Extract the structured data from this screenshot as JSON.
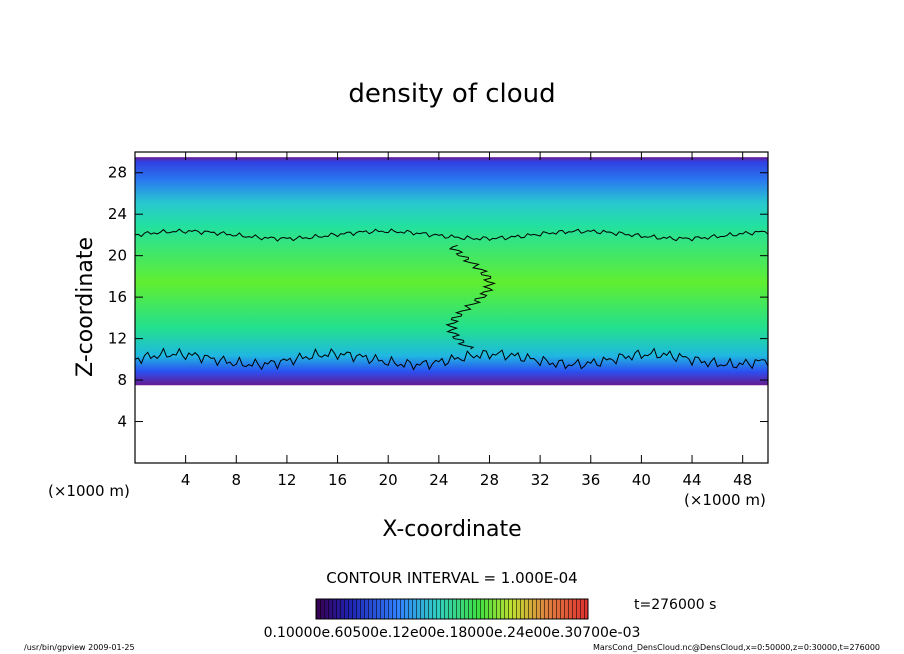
{
  "chart_data": {
    "type": "heatmap",
    "title": "density of cloud",
    "xlabel": "X-coordinate",
    "ylabel": "Z-coordinate",
    "x_unit_left": "(×1000 m)",
    "x_unit_right": "(×1000 m)",
    "xlim": [
      0,
      50
    ],
    "ylim": [
      0,
      30
    ],
    "xticks": [
      4,
      8,
      12,
      16,
      20,
      24,
      28,
      32,
      36,
      40,
      44,
      48
    ],
    "xtick_labels": [
      "4",
      "8",
      "12",
      "16",
      "20",
      "24",
      "28",
      "32",
      "36",
      "40",
      "44",
      "48"
    ],
    "yticks": [
      4,
      8,
      12,
      16,
      20,
      24,
      28
    ],
    "ytick_labels": [
      "4",
      "8",
      "12",
      "16",
      "20",
      "24",
      "28"
    ],
    "cloud_layer": {
      "z_bottom": 7.5,
      "z_top": 29.5
    },
    "contour_interval_text": "CONTOUR INTERVAL = 1.000E-04",
    "time_text": "t=276000 s",
    "colorbar_labels_text": "0.10000e.60500e.12e00e.18000e.24e00e.30700e-03",
    "colors": {
      "low": "#5a0a7a",
      "mid_low": "#2a4cf0",
      "mid": "#1ee060",
      "high": "#b0ff30"
    }
  },
  "footer": {
    "left": "/usr/bin/gpview   2009-01-25",
    "right": "MarsCond_DensCloud.nc@DensCloud,x=0:50000,z=0:30000,t=276000"
  }
}
